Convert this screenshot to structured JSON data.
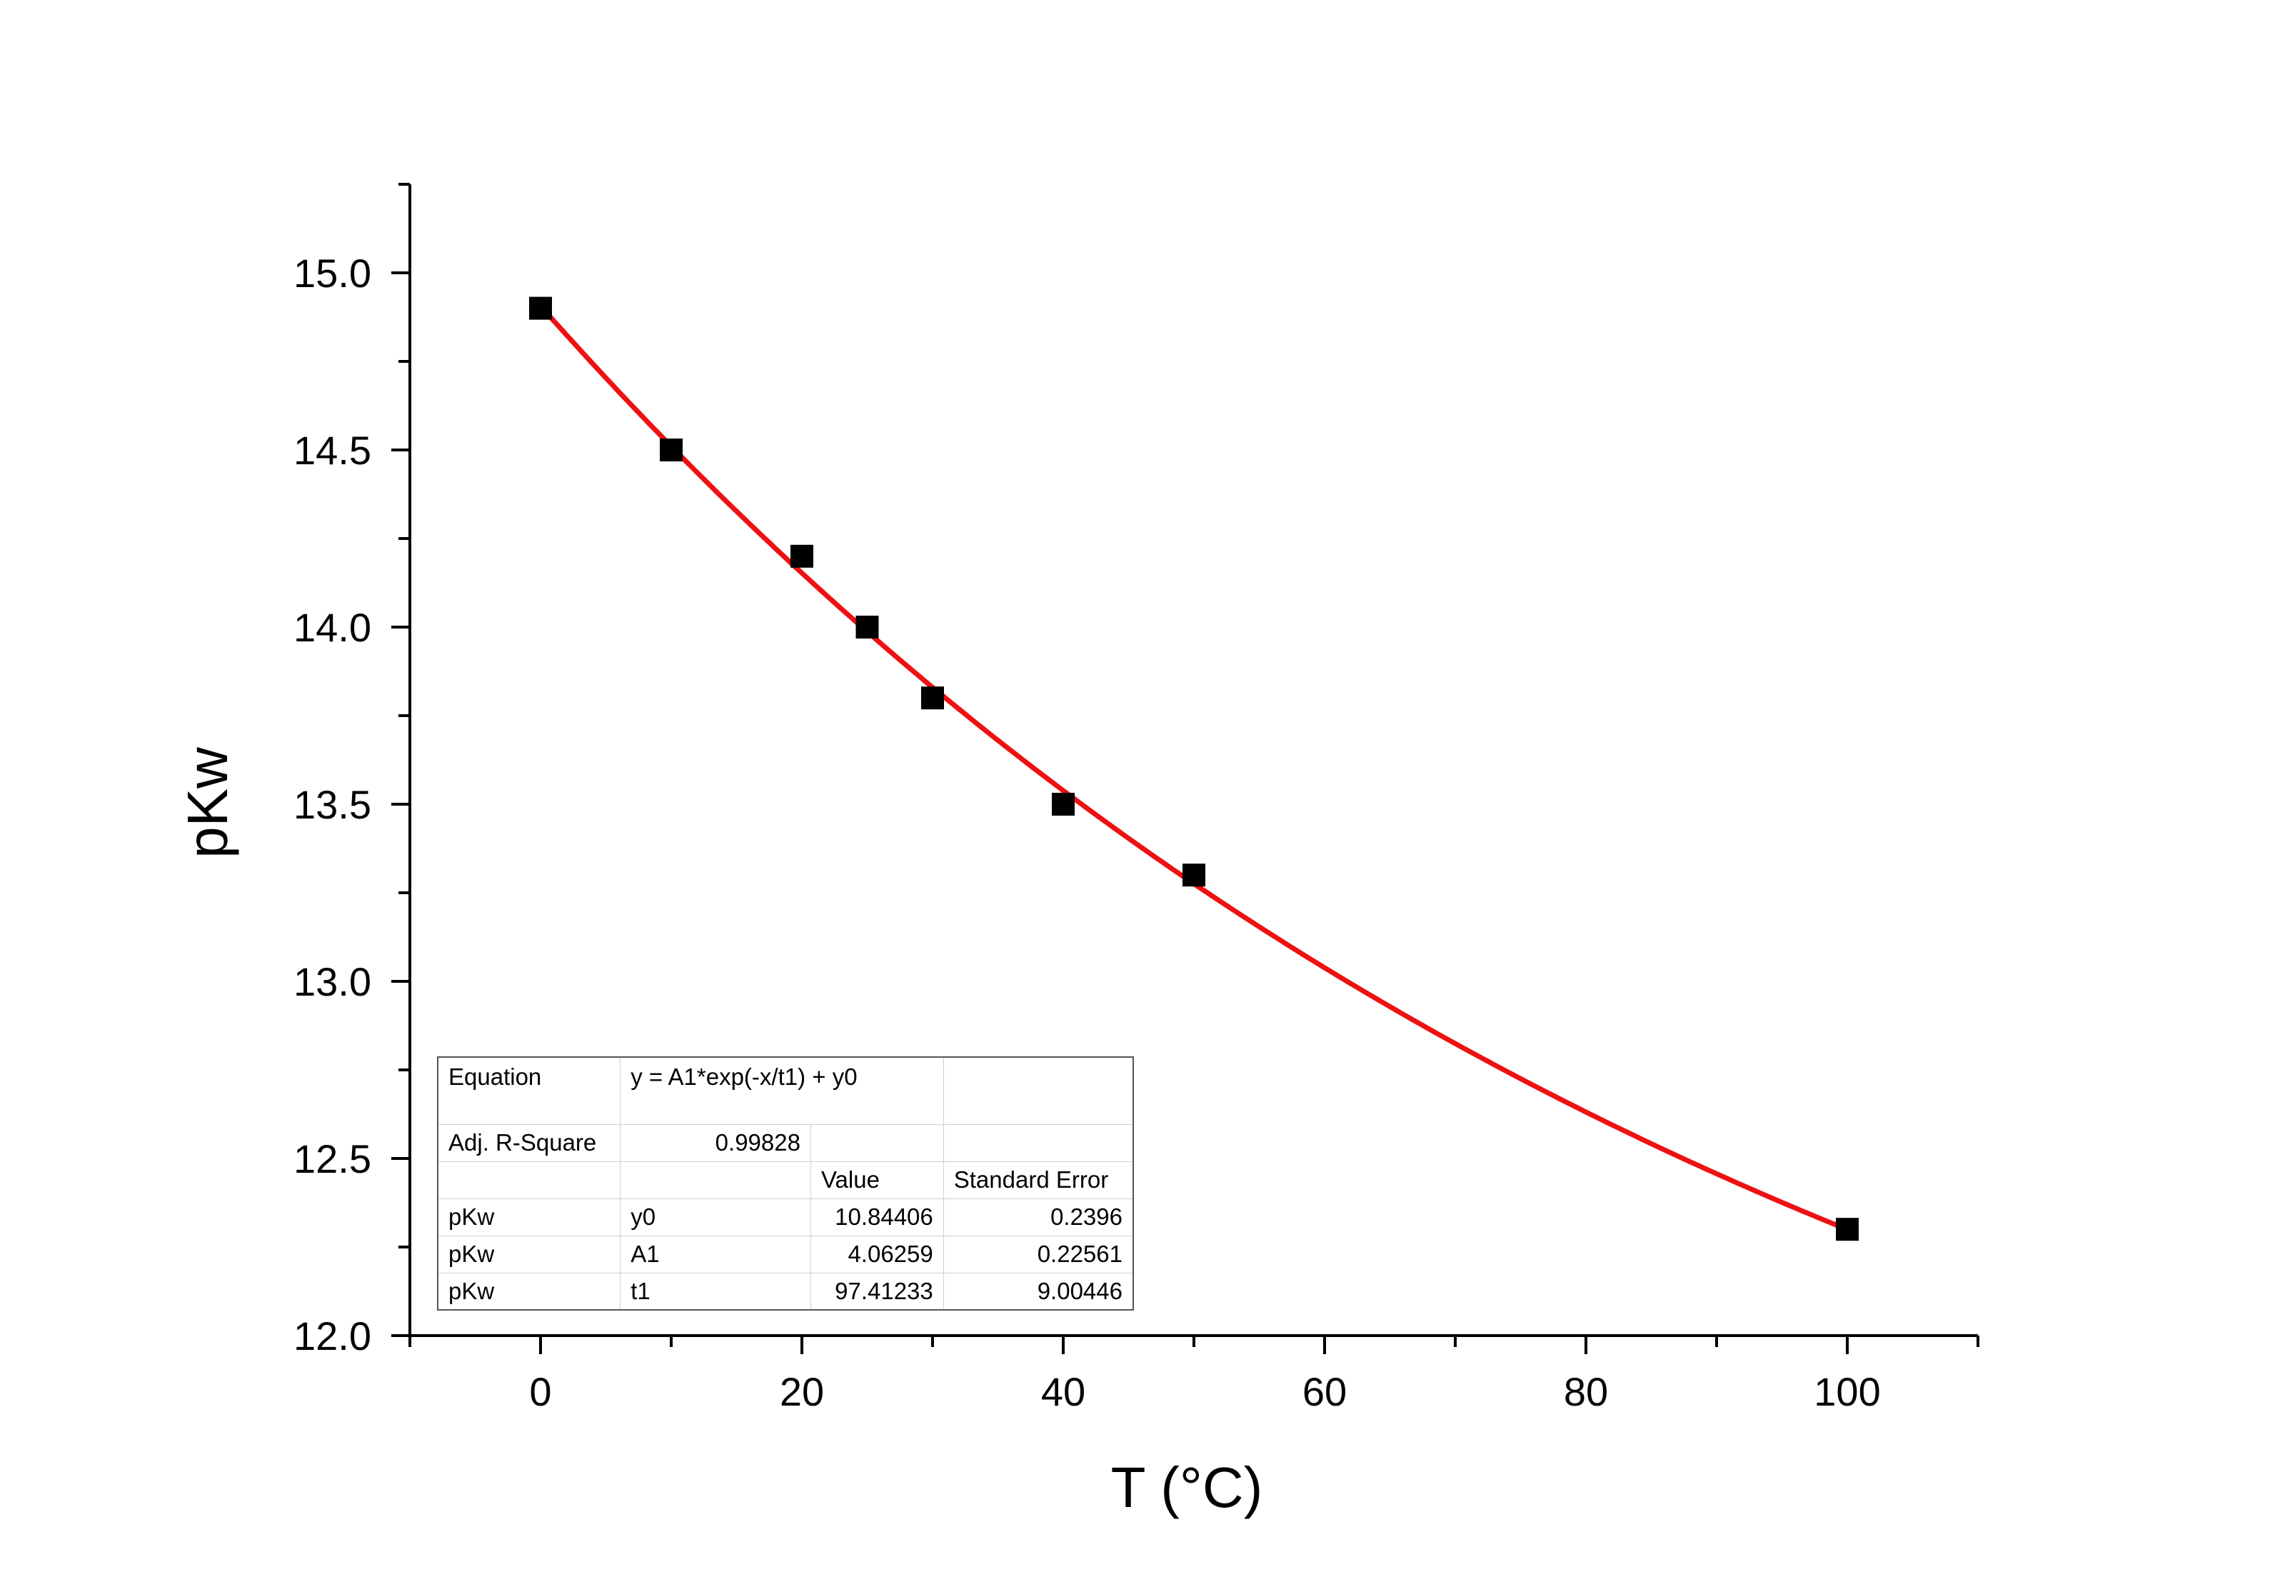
{
  "chart_data": {
    "type": "scatter",
    "xlabel": "T (°C)",
    "ylabel": "pKw",
    "xlim": [
      -10,
      110
    ],
    "ylim": [
      12.0,
      15.25
    ],
    "x_ticks": [
      0,
      20,
      40,
      60,
      80,
      100
    ],
    "x_tick_labels": [
      "0",
      "20",
      "40",
      "60",
      "80",
      "100"
    ],
    "y_ticks": [
      12.0,
      12.5,
      13.0,
      13.5,
      14.0,
      14.5,
      15.0
    ],
    "y_tick_labels": [
      "12.0",
      "12.5",
      "13.0",
      "13.5",
      "14.0",
      "14.5",
      "15.0"
    ],
    "grid": false,
    "marker_color": "#000000",
    "fit_color": "#ee1111",
    "series": [
      {
        "x": [
          0,
          10,
          20,
          25,
          30,
          40,
          50,
          100
        ],
        "y": [
          14.9,
          14.5,
          14.2,
          14.0,
          13.8,
          13.5,
          13.3,
          12.3
        ]
      }
    ],
    "fit": {
      "equation": "y = A1*exp(-x/t1) + y0",
      "y0": 10.84406,
      "A1": 4.06259,
      "t1": 97.41233,
      "x_range": [
        0,
        100
      ]
    }
  },
  "fit_table": {
    "equation_label": "Equation",
    "equation_value": "y = A1*exp(-x/t1) + y0",
    "adj_r_square_label": "Adj. R-Square",
    "adj_r_square_value": "0.99828",
    "value_header": "Value",
    "std_error_header": "Standard Error",
    "rows": [
      {
        "dataset": "pKw",
        "param": "y0",
        "value": "10.84406",
        "std_error": "0.2396"
      },
      {
        "dataset": "pKw",
        "param": "A1",
        "value": "4.06259",
        "std_error": "0.22561"
      },
      {
        "dataset": "pKw",
        "param": "t1",
        "value": "97.41233",
        "std_error": "9.00446"
      }
    ]
  }
}
